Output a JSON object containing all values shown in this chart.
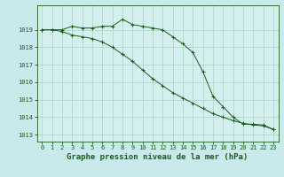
{
  "title": "Graphe pression niveau de la mer (hPa)",
  "background_color": "#c8eaea",
  "plot_bg_color": "#d4f0ee",
  "grid_color": "#a0ccbb",
  "line_color": "#1a5c1a",
  "hours": [
    0,
    1,
    2,
    3,
    4,
    5,
    6,
    7,
    8,
    9,
    10,
    11,
    12,
    13,
    14,
    15,
    16,
    17,
    18,
    19,
    20,
    21,
    22,
    23
  ],
  "series1": [
    1019.0,
    1019.0,
    1019.0,
    1019.2,
    1019.1,
    1019.1,
    1019.2,
    1019.2,
    1019.6,
    1019.3,
    1019.2,
    1019.1,
    1019.0,
    1018.6,
    1018.2,
    1017.7,
    1016.6,
    1015.2,
    1014.6,
    1014.0,
    1013.6,
    1013.6,
    1013.55,
    1013.3
  ],
  "series2_hours": [
    0,
    1,
    2,
    3,
    4,
    5,
    6,
    7,
    8,
    9,
    10,
    11,
    12,
    13,
    14,
    15,
    16,
    17,
    18,
    19,
    20,
    21,
    22,
    23
  ],
  "series2": [
    1019.0,
    1019.0,
    1018.9,
    1018.7,
    1018.6,
    1018.5,
    1018.3,
    1018.0,
    1017.6,
    1017.2,
    1016.7,
    1016.2,
    1015.8,
    1015.4,
    1015.1,
    1014.8,
    1014.5,
    1014.2,
    1014.0,
    1013.8,
    1013.65,
    1013.55,
    1013.5,
    1013.3
  ],
  "ylim": [
    1012.6,
    1020.4
  ],
  "yticks": [
    1013,
    1014,
    1015,
    1016,
    1017,
    1018,
    1019
  ],
  "xlim": [
    -0.5,
    23.5
  ],
  "xticks": [
    0,
    1,
    2,
    3,
    4,
    5,
    6,
    7,
    8,
    9,
    10,
    11,
    12,
    13,
    14,
    15,
    16,
    17,
    18,
    19,
    20,
    21,
    22,
    23
  ],
  "tick_fontsize": 5.0,
  "title_fontsize": 6.5,
  "title_color": "#1a5c1a"
}
